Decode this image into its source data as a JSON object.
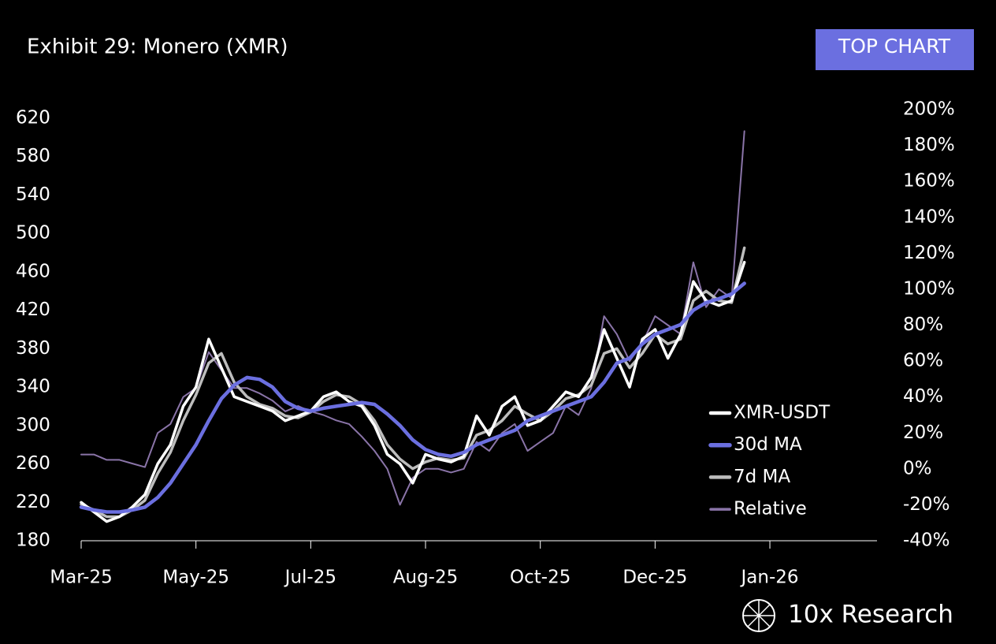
{
  "chart_data": {
    "type": "line",
    "title": "Exhibit 29: Monero (XMR)",
    "badge": "TOP CHART",
    "source": "10x Research",
    "x": [
      0,
      5,
      10,
      15,
      20,
      25,
      30,
      35,
      40,
      45,
      50,
      55,
      60,
      65,
      70,
      75,
      80,
      85,
      90,
      95,
      100,
      105,
      110,
      115,
      120,
      125,
      130,
      135,
      140,
      145,
      150,
      155,
      160,
      165,
      170,
      175,
      180,
      185,
      190,
      195,
      200,
      205,
      210,
      215,
      220,
      225,
      230,
      235,
      240,
      245,
      250,
      255,
      260
    ],
    "xlim": [
      0,
      312
    ],
    "xticks": [
      {
        "value": 0,
        "label": "Mar-25"
      },
      {
        "value": 45,
        "label": "May-25"
      },
      {
        "value": 90,
        "label": "Jul-25"
      },
      {
        "value": 135,
        "label": "Aug-25"
      },
      {
        "value": 180,
        "label": "Oct-25"
      },
      {
        "value": 225,
        "label": "Dec-25"
      },
      {
        "value": 270,
        "label": "Jan-26"
      }
    ],
    "ylim": [
      180,
      629
    ],
    "yticks": [
      180,
      220,
      260,
      300,
      340,
      380,
      420,
      460,
      500,
      540,
      580,
      620
    ],
    "y2lim": [
      -40,
      200
    ],
    "y2ticks": [
      {
        "value": -40,
        "label": "-40%"
      },
      {
        "value": -20,
        "label": "-20%"
      },
      {
        "value": 0,
        "label": "0%"
      },
      {
        "value": 20,
        "label": "20%"
      },
      {
        "value": 40,
        "label": "40%"
      },
      {
        "value": 60,
        "label": "60%"
      },
      {
        "value": 80,
        "label": "80%"
      },
      {
        "value": 100,
        "label": "100%"
      },
      {
        "value": 120,
        "label": "120%"
      },
      {
        "value": 140,
        "label": "140%"
      },
      {
        "value": 160,
        "label": "160%"
      },
      {
        "value": 180,
        "label": "180%"
      },
      {
        "value": 200,
        "label": "200%"
      }
    ],
    "series": [
      {
        "name": "XMR-USDT",
        "color": "#ffffff",
        "width": 3.5,
        "values": [
          220,
          210,
          200,
          205,
          215,
          228,
          260,
          280,
          320,
          340,
          390,
          360,
          330,
          325,
          320,
          315,
          305,
          310,
          315,
          330,
          335,
          325,
          320,
          300,
          270,
          260,
          240,
          270,
          265,
          262,
          268,
          310,
          290,
          320,
          330,
          300,
          305,
          320,
          335,
          330,
          350,
          400,
          370,
          340,
          390,
          400,
          370,
          395,
          450,
          430,
          425,
          430,
          470
        ]
      },
      {
        "name": "30d MA",
        "color": "#6b6fe0",
        "width": 4.5,
        "values": [
          215,
          212,
          210,
          210,
          212,
          215,
          225,
          240,
          260,
          280,
          305,
          328,
          342,
          350,
          348,
          340,
          325,
          318,
          315,
          318,
          320,
          322,
          324,
          322,
          312,
          300,
          285,
          275,
          270,
          268,
          272,
          280,
          285,
          290,
          295,
          305,
          310,
          315,
          320,
          325,
          330,
          345,
          365,
          370,
          385,
          395,
          400,
          405,
          420,
          428,
          432,
          437,
          448
        ]
      },
      {
        "name": "7d MA",
        "color": "#bdbdbd",
        "width": 3.5,
        "values": [
          218,
          212,
          205,
          205,
          212,
          222,
          250,
          272,
          305,
          332,
          365,
          375,
          345,
          330,
          322,
          318,
          310,
          308,
          314,
          325,
          332,
          330,
          322,
          305,
          280,
          265,
          255,
          262,
          266,
          264,
          266,
          290,
          295,
          305,
          320,
          312,
          305,
          315,
          328,
          332,
          342,
          375,
          380,
          360,
          375,
          395,
          385,
          390,
          430,
          440,
          430,
          428,
          485
        ]
      },
      {
        "name": "Relative",
        "color": "#8a74a8",
        "width": 2,
        "axis": "y2",
        "values": [
          8,
          8,
          5,
          5,
          3,
          1,
          20,
          25,
          40,
          45,
          65,
          55,
          45,
          45,
          42,
          38,
          32,
          35,
          32,
          30,
          27,
          25,
          18,
          10,
          0,
          -20,
          -5,
          0,
          0,
          -2,
          0,
          15,
          10,
          20,
          25,
          10,
          15,
          20,
          35,
          30,
          45,
          85,
          75,
          60,
          70,
          85,
          80,
          75,
          115,
          90,
          100,
          95,
          188
        ]
      }
    ]
  }
}
